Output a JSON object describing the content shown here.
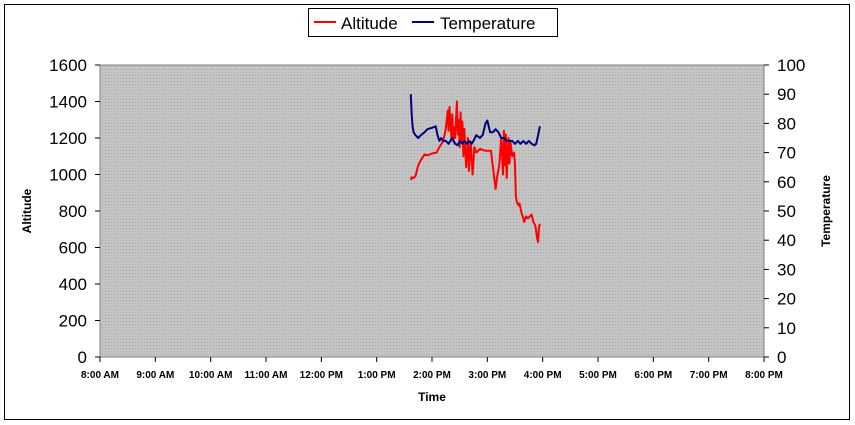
{
  "chart_data": {
    "type": "line",
    "title": "",
    "xlabel": "Time",
    "ylabel_left": "Altitude",
    "ylabel_right": "Temperature",
    "x_ticks": [
      "8:00 AM",
      "9:00 AM",
      "10:00 AM",
      "11:00 AM",
      "12:00 PM",
      "1:00 PM",
      "2:00 PM",
      "3:00 PM",
      "4:00 PM",
      "5:00 PM",
      "6:00 PM",
      "7:00 PM",
      "8:00 PM"
    ],
    "y_left_ticks": [
      "0",
      "200",
      "400",
      "600",
      "800",
      "1000",
      "1200",
      "1400",
      "1600"
    ],
    "y_right_ticks": [
      "0",
      "10",
      "20",
      "30",
      "40",
      "50",
      "60",
      "70",
      "80",
      "90",
      "100"
    ],
    "xlim": [
      "8:00 AM",
      "8:00 PM"
    ],
    "ylim_left": [
      0,
      1600
    ],
    "ylim_right": [
      0,
      100
    ],
    "legend_position": "top-center",
    "plot_background": "#c0c0c0",
    "series": [
      {
        "name": "Altitude",
        "axis": "left",
        "color": "#ff0000",
        "points": [
          [
            "13:37",
            970
          ],
          [
            "13:38",
            985
          ],
          [
            "13:40",
            980
          ],
          [
            "13:42",
            990
          ],
          [
            "13:45",
            1050
          ],
          [
            "13:48",
            1080
          ],
          [
            "13:52",
            1110
          ],
          [
            "13:55",
            1105
          ],
          [
            "14:00",
            1115
          ],
          [
            "14:05",
            1120
          ],
          [
            "14:08",
            1150
          ],
          [
            "14:12",
            1180
          ],
          [
            "14:15",
            1250
          ],
          [
            "14:17",
            1350
          ],
          [
            "14:18",
            1240
          ],
          [
            "14:19",
            1370
          ],
          [
            "14:21",
            1200
          ],
          [
            "14:22",
            1330
          ],
          [
            "14:23",
            1180
          ],
          [
            "14:24",
            1260
          ],
          [
            "14:25",
            1200
          ],
          [
            "14:27",
            1400
          ],
          [
            "14:28",
            1220
          ],
          [
            "14:29",
            1300
          ],
          [
            "14:30",
            1150
          ],
          [
            "14:31",
            1340
          ],
          [
            "14:32",
            1180
          ],
          [
            "14:33",
            1290
          ],
          [
            "14:34",
            1100
          ],
          [
            "14:35",
            1250
          ],
          [
            "14:37",
            1040
          ],
          [
            "14:39",
            1200
          ],
          [
            "14:40",
            1020
          ],
          [
            "14:42",
            1180
          ],
          [
            "14:44",
            1000
          ],
          [
            "14:46",
            1150
          ],
          [
            "14:48",
            1120
          ],
          [
            "14:52",
            1140
          ],
          [
            "14:58",
            1130
          ],
          [
            "15:04",
            1130
          ],
          [
            "15:07",
            1000
          ],
          [
            "15:09",
            920
          ],
          [
            "15:11",
            1000
          ],
          [
            "15:13",
            1050
          ],
          [
            "15:15",
            1200
          ],
          [
            "15:17",
            1000
          ],
          [
            "15:18",
            1240
          ],
          [
            "15:19",
            1050
          ],
          [
            "15:20",
            1220
          ],
          [
            "15:21",
            980
          ],
          [
            "15:23",
            1200
          ],
          [
            "15:24",
            1060
          ],
          [
            "15:25",
            1180
          ],
          [
            "15:27",
            1100
          ],
          [
            "15:29",
            1120
          ],
          [
            "15:30",
            1050
          ],
          [
            "15:31",
            880
          ],
          [
            "15:32",
            850
          ],
          [
            "15:34",
            830
          ],
          [
            "15:35",
            840
          ],
          [
            "15:37",
            790
          ],
          [
            "15:39",
            760
          ],
          [
            "15:40",
            740
          ],
          [
            "15:42",
            770
          ],
          [
            "15:44",
            760
          ],
          [
            "15:46",
            770
          ],
          [
            "15:48",
            780
          ],
          [
            "15:50",
            740
          ],
          [
            "15:52",
            720
          ],
          [
            "15:53",
            690
          ],
          [
            "15:54",
            650
          ],
          [
            "15:55",
            630
          ],
          [
            "15:56",
            710
          ],
          [
            "15:57",
            730
          ]
        ]
      },
      {
        "name": "Temperature",
        "axis": "right",
        "color": "#000080",
        "points": [
          [
            "13:37",
            90
          ],
          [
            "13:38",
            83
          ],
          [
            "13:39",
            79
          ],
          [
            "13:40",
            77
          ],
          [
            "13:42",
            76
          ],
          [
            "13:45",
            75
          ],
          [
            "13:48",
            76
          ],
          [
            "13:52",
            77
          ],
          [
            "13:55",
            78
          ],
          [
            "14:00",
            78.5
          ],
          [
            "14:04",
            79
          ],
          [
            "14:06",
            76
          ],
          [
            "14:08",
            74
          ],
          [
            "14:10",
            75
          ],
          [
            "14:12",
            74
          ],
          [
            "14:15",
            74
          ],
          [
            "14:18",
            73
          ],
          [
            "14:20",
            74
          ],
          [
            "14:22",
            75
          ],
          [
            "14:25",
            73
          ],
          [
            "14:28",
            72.5
          ],
          [
            "14:30",
            74
          ],
          [
            "14:33",
            73
          ],
          [
            "14:35",
            74
          ],
          [
            "14:38",
            73
          ],
          [
            "14:40",
            74
          ],
          [
            "14:43",
            73
          ],
          [
            "14:45",
            74
          ],
          [
            "14:48",
            76
          ],
          [
            "14:52",
            75
          ],
          [
            "14:55",
            76
          ],
          [
            "14:58",
            80
          ],
          [
            "15:00",
            81
          ],
          [
            "15:03",
            77
          ],
          [
            "15:06",
            77
          ],
          [
            "15:09",
            78
          ],
          [
            "15:12",
            77
          ],
          [
            "15:15",
            75
          ],
          [
            "15:18",
            75
          ],
          [
            "15:21",
            74
          ],
          [
            "15:24",
            74
          ],
          [
            "15:27",
            74
          ],
          [
            "15:30",
            73
          ],
          [
            "15:33",
            74
          ],
          [
            "15:36",
            73
          ],
          [
            "15:39",
            74
          ],
          [
            "15:42",
            73
          ],
          [
            "15:45",
            74
          ],
          [
            "15:48",
            73
          ],
          [
            "15:51",
            72.5
          ],
          [
            "15:53",
            73
          ],
          [
            "15:55",
            76
          ],
          [
            "15:57",
            79
          ]
        ]
      }
    ]
  }
}
